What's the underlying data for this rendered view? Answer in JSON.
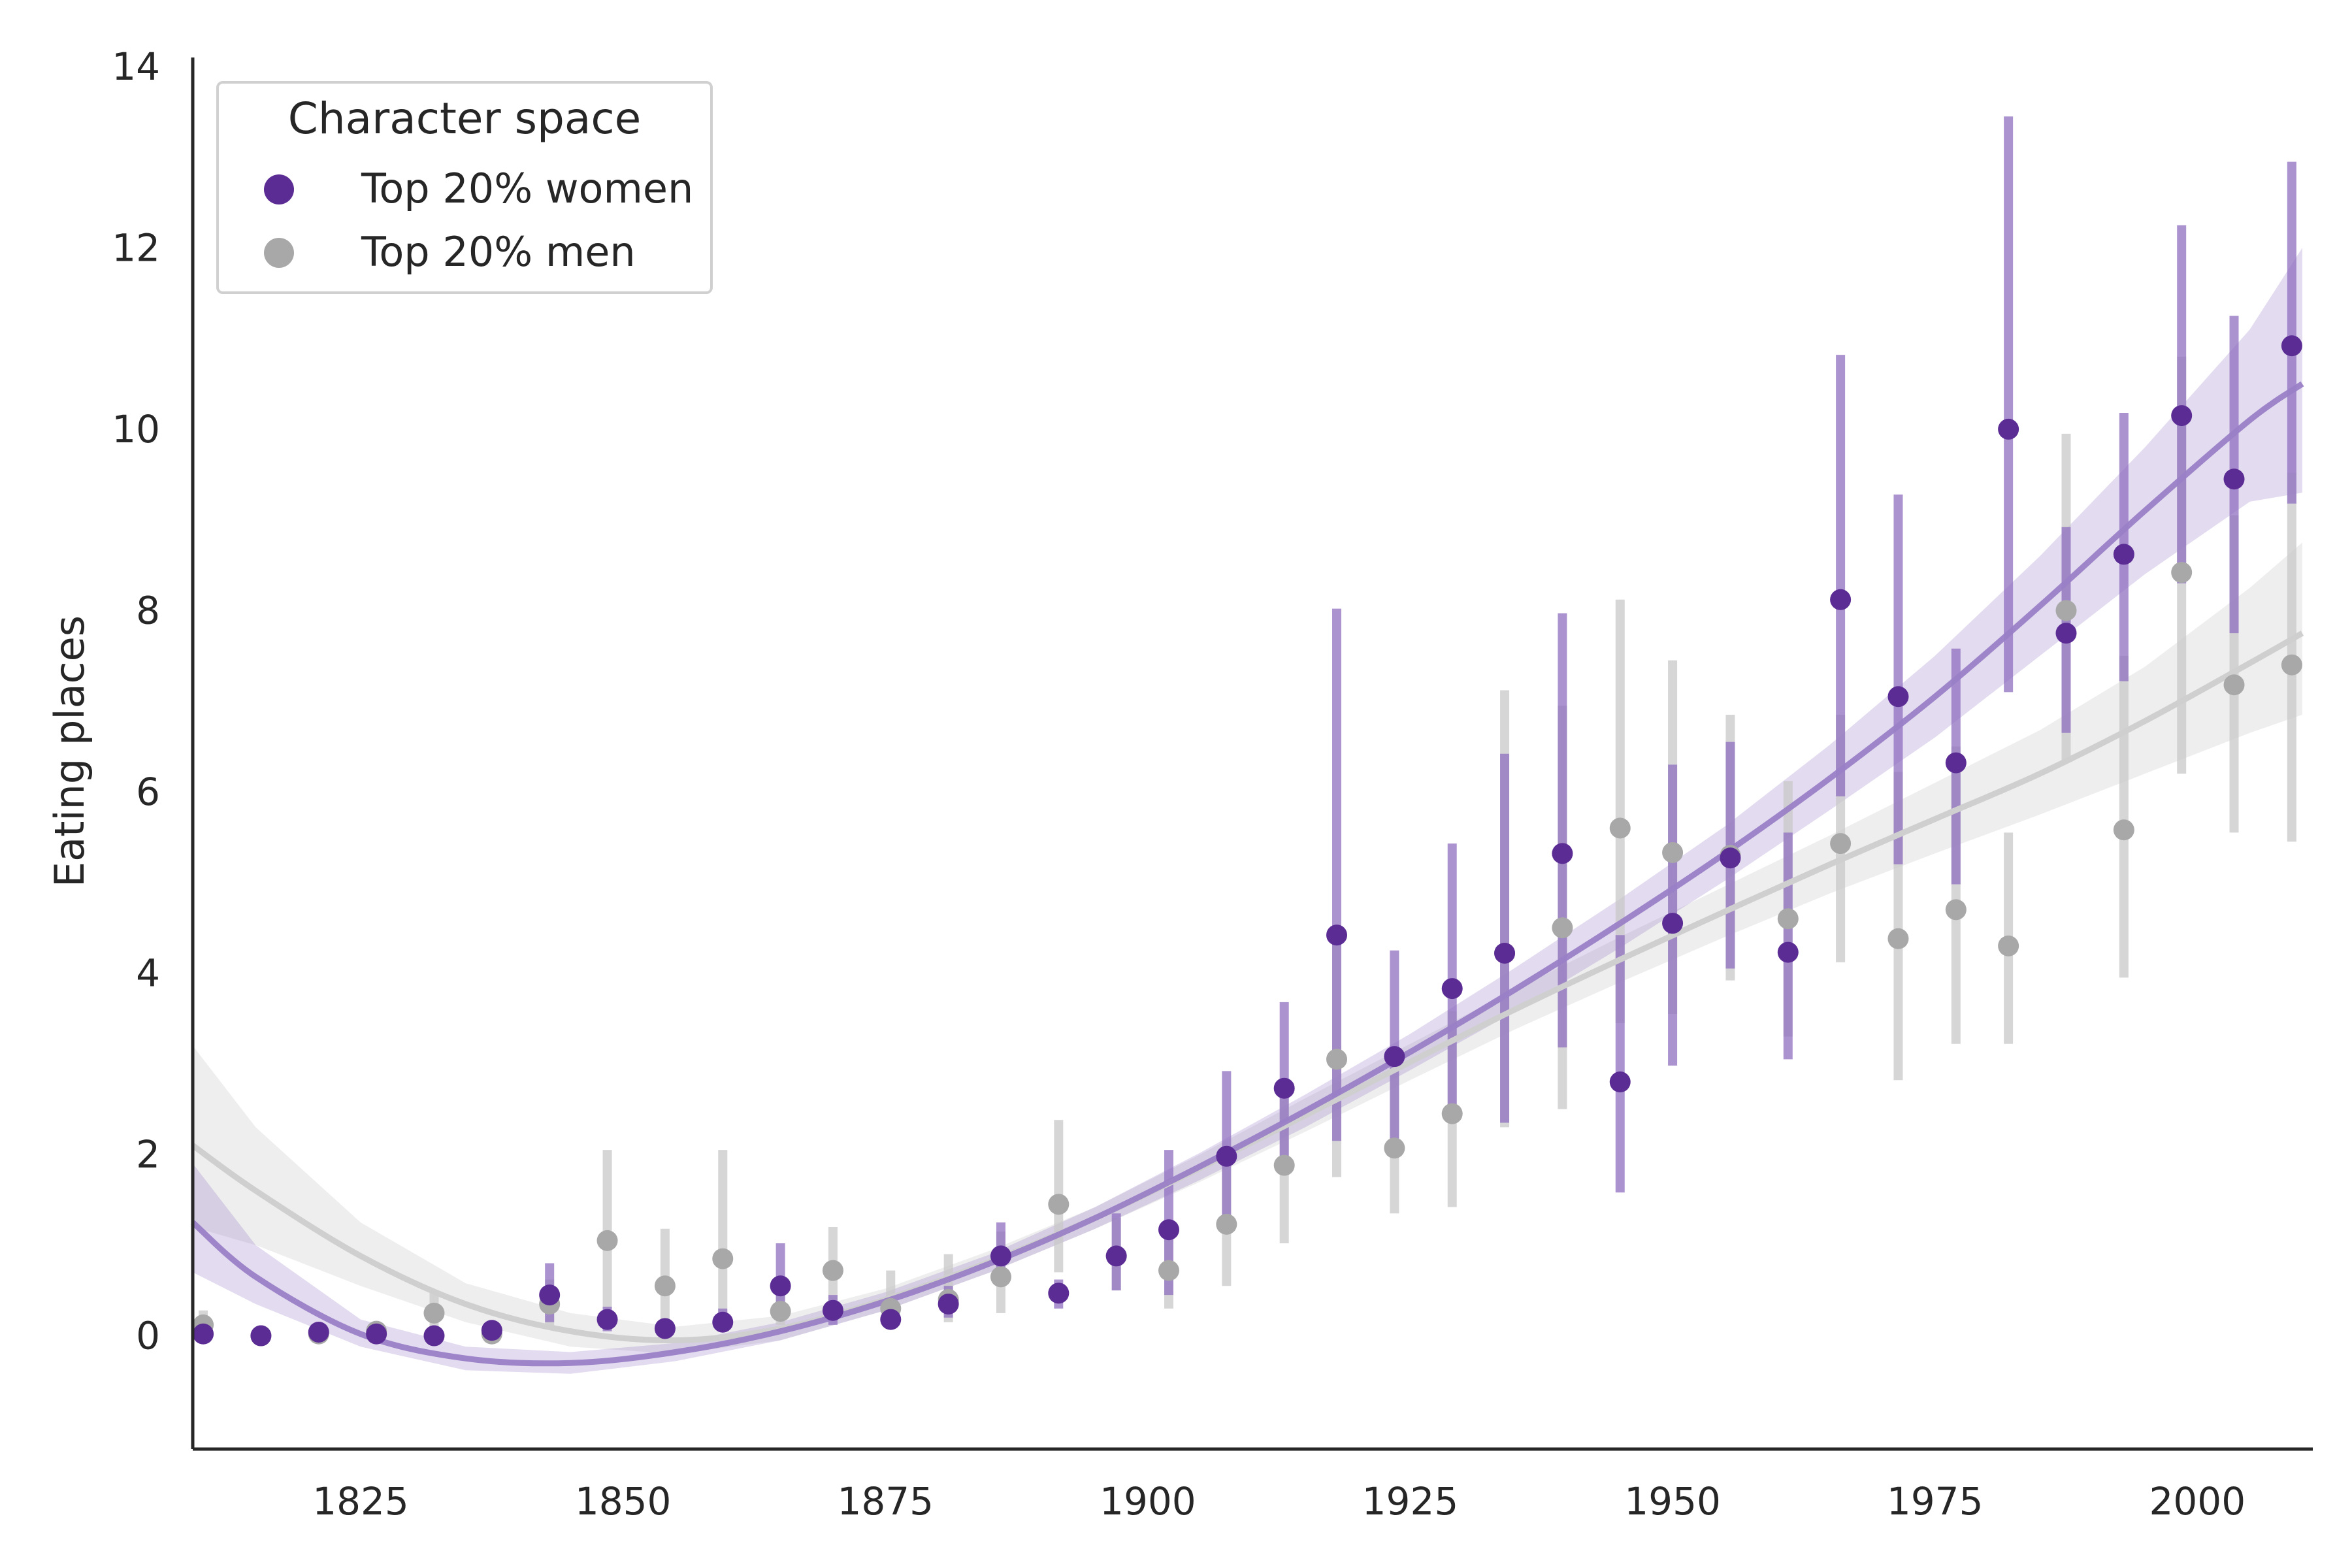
{
  "chart_data": {
    "type": "scatter",
    "title": "",
    "xlabel": "",
    "ylabel": "Eating places",
    "xlim": [
      1809,
      2011
    ],
    "ylim": [
      -1.25,
      14.1
    ],
    "xticks": [
      1825,
      1850,
      1875,
      1900,
      1925,
      1950,
      1975,
      2000
    ],
    "yticks": [
      0,
      2,
      4,
      6,
      8,
      10,
      12,
      14
    ],
    "grid": false,
    "legend": {
      "title": "Character space",
      "placement": "top-left",
      "entries": [
        "Top 20% women",
        "Top 20% men"
      ]
    },
    "series": [
      {
        "name": "Top 20% women",
        "color": "#5b2c94",
        "points": [
          {
            "x": 1810,
            "y": 0.02,
            "lo": 0.0,
            "hi": 0.1
          },
          {
            "x": 1815.5,
            "y": 0.0,
            "lo": 0.0,
            "hi": 0.0
          },
          {
            "x": 1821,
            "y": 0.04,
            "lo": 0.0,
            "hi": 0.1
          },
          {
            "x": 1826.5,
            "y": 0.02,
            "lo": 0.0,
            "hi": 0.08
          },
          {
            "x": 1832,
            "y": 0.0,
            "lo": 0.0,
            "hi": 0.02
          },
          {
            "x": 1837.5,
            "y": 0.06,
            "lo": 0.0,
            "hi": 0.15
          },
          {
            "x": 1843,
            "y": 0.45,
            "lo": 0.15,
            "hi": 0.8
          },
          {
            "x": 1848.5,
            "y": 0.18,
            "lo": 0.05,
            "hi": 0.32
          },
          {
            "x": 1854,
            "y": 0.08,
            "lo": 0.02,
            "hi": 0.16
          },
          {
            "x": 1859.5,
            "y": 0.15,
            "lo": 0.05,
            "hi": 0.3
          },
          {
            "x": 1865,
            "y": 0.55,
            "lo": 0.2,
            "hi": 1.02
          },
          {
            "x": 1870,
            "y": 0.28,
            "lo": 0.12,
            "hi": 0.45
          },
          {
            "x": 1875.5,
            "y": 0.18,
            "lo": 0.08,
            "hi": 0.3
          },
          {
            "x": 1881,
            "y": 0.35,
            "lo": 0.2,
            "hi": 0.55
          },
          {
            "x": 1886,
            "y": 0.88,
            "lo": 0.55,
            "hi": 1.25
          },
          {
            "x": 1891.5,
            "y": 0.47,
            "lo": 0.3,
            "hi": 0.62
          },
          {
            "x": 1897,
            "y": 0.88,
            "lo": 0.5,
            "hi": 1.35
          },
          {
            "x": 1902,
            "y": 1.17,
            "lo": 0.45,
            "hi": 2.05
          },
          {
            "x": 1907.5,
            "y": 1.98,
            "lo": 1.2,
            "hi": 2.92
          },
          {
            "x": 1913,
            "y": 2.73,
            "lo": 1.9,
            "hi": 3.68
          },
          {
            "x": 1918,
            "y": 4.42,
            "lo": 2.15,
            "hi": 8.02
          },
          {
            "x": 1923.5,
            "y": 3.08,
            "lo": 2.1,
            "hi": 4.25
          },
          {
            "x": 1929,
            "y": 3.83,
            "lo": 2.5,
            "hi": 5.43
          },
          {
            "x": 1934,
            "y": 4.22,
            "lo": 2.35,
            "hi": 6.42
          },
          {
            "x": 1939.5,
            "y": 5.32,
            "lo": 3.18,
            "hi": 7.97
          },
          {
            "x": 1945,
            "y": 2.8,
            "lo": 1.58,
            "hi": 4.42
          },
          {
            "x": 1950,
            "y": 4.55,
            "lo": 2.98,
            "hi": 6.3
          },
          {
            "x": 1955.5,
            "y": 5.27,
            "lo": 4.05,
            "hi": 6.55
          },
          {
            "x": 1961,
            "y": 4.23,
            "lo": 3.05,
            "hi": 5.55
          },
          {
            "x": 1966,
            "y": 8.12,
            "lo": 5.95,
            "hi": 10.82
          },
          {
            "x": 1971.5,
            "y": 7.05,
            "lo": 5.2,
            "hi": 9.28
          },
          {
            "x": 1977,
            "y": 6.32,
            "lo": 4.98,
            "hi": 7.58
          },
          {
            "x": 1982,
            "y": 10.0,
            "lo": 7.1,
            "hi": 13.45
          },
          {
            "x": 1987.5,
            "y": 7.75,
            "lo": 6.65,
            "hi": 8.92
          },
          {
            "x": 1993,
            "y": 8.62,
            "lo": 7.22,
            "hi": 10.18
          },
          {
            "x": 1998.5,
            "y": 10.15,
            "lo": 8.3,
            "hi": 12.25
          },
          {
            "x": 2003.5,
            "y": 9.45,
            "lo": 7.75,
            "hi": 11.25
          },
          {
            "x": 2009,
            "y": 10.92,
            "lo": 9.18,
            "hi": 12.95
          }
        ],
        "fit": [
          {
            "x": 1809,
            "y": 1.25,
            "lo": 0.7,
            "hi": 1.9
          },
          {
            "x": 1815,
            "y": 0.65,
            "lo": 0.35,
            "hi": 1.0
          },
          {
            "x": 1825,
            "y": 0.02,
            "lo": -0.12,
            "hi": 0.18
          },
          {
            "x": 1835,
            "y": -0.25,
            "lo": -0.38,
            "hi": -0.12
          },
          {
            "x": 1845,
            "y": -0.3,
            "lo": -0.42,
            "hi": -0.18
          },
          {
            "x": 1855,
            "y": -0.18,
            "lo": -0.28,
            "hi": -0.08
          },
          {
            "x": 1865,
            "y": 0.05,
            "lo": -0.05,
            "hi": 0.15
          },
          {
            "x": 1875,
            "y": 0.38,
            "lo": 0.28,
            "hi": 0.48
          },
          {
            "x": 1885,
            "y": 0.8,
            "lo": 0.7,
            "hi": 0.9
          },
          {
            "x": 1895,
            "y": 1.3,
            "lo": 1.18,
            "hi": 1.42
          },
          {
            "x": 1905,
            "y": 1.87,
            "lo": 1.72,
            "hi": 2.02
          },
          {
            "x": 1915,
            "y": 2.48,
            "lo": 2.3,
            "hi": 2.66
          },
          {
            "x": 1925,
            "y": 3.13,
            "lo": 2.93,
            "hi": 3.33
          },
          {
            "x": 1935,
            "y": 3.82,
            "lo": 3.58,
            "hi": 4.06
          },
          {
            "x": 1945,
            "y": 4.55,
            "lo": 4.28,
            "hi": 4.82
          },
          {
            "x": 1955,
            "y": 5.32,
            "lo": 5.02,
            "hi": 5.62
          },
          {
            "x": 1965,
            "y": 6.15,
            "lo": 5.8,
            "hi": 6.52
          },
          {
            "x": 1975,
            "y": 7.05,
            "lo": 6.6,
            "hi": 7.5
          },
          {
            "x": 1985,
            "y": 8.05,
            "lo": 7.5,
            "hi": 8.6
          },
          {
            "x": 1995,
            "y": 9.1,
            "lo": 8.4,
            "hi": 9.8
          },
          {
            "x": 2005,
            "y": 10.1,
            "lo": 9.2,
            "hi": 11.1
          },
          {
            "x": 2010,
            "y": 10.5,
            "lo": 9.3,
            "hi": 12.0
          }
        ]
      },
      {
        "name": "Top 20% men",
        "color": "#a8a8a8",
        "points": [
          {
            "x": 1810,
            "y": 0.12,
            "lo": 0.0,
            "hi": 0.28
          },
          {
            "x": 1815.5,
            "y": 0.0,
            "lo": 0.0,
            "hi": 0.0
          },
          {
            "x": 1821,
            "y": 0.02,
            "lo": 0.0,
            "hi": 0.08
          },
          {
            "x": 1826.5,
            "y": 0.05,
            "lo": 0.0,
            "hi": 0.15
          },
          {
            "x": 1832,
            "y": 0.25,
            "lo": 0.05,
            "hi": 0.5
          },
          {
            "x": 1837.5,
            "y": 0.02,
            "lo": 0.0,
            "hi": 0.08
          },
          {
            "x": 1843,
            "y": 0.35,
            "lo": 0.1,
            "hi": 0.62
          },
          {
            "x": 1848.5,
            "y": 1.05,
            "lo": 0.3,
            "hi": 2.05
          },
          {
            "x": 1854,
            "y": 0.55,
            "lo": 0.15,
            "hi": 1.18
          },
          {
            "x": 1859.5,
            "y": 0.85,
            "lo": 0.18,
            "hi": 2.05
          },
          {
            "x": 1865,
            "y": 0.27,
            "lo": 0.12,
            "hi": 0.45
          },
          {
            "x": 1870,
            "y": 0.72,
            "lo": 0.3,
            "hi": 1.2
          },
          {
            "x": 1875.5,
            "y": 0.3,
            "lo": 0.1,
            "hi": 0.72
          },
          {
            "x": 1881,
            "y": 0.4,
            "lo": 0.15,
            "hi": 0.9
          },
          {
            "x": 1886,
            "y": 0.65,
            "lo": 0.25,
            "hi": 1.15
          },
          {
            "x": 1891.5,
            "y": 1.45,
            "lo": 0.7,
            "hi": 2.38
          },
          {
            "x": 1897,
            "y": 0.88,
            "lo": 0.5,
            "hi": 1.3
          },
          {
            "x": 1902,
            "y": 0.72,
            "lo": 0.3,
            "hi": 1.25
          },
          {
            "x": 1907.5,
            "y": 1.23,
            "lo": 0.55,
            "hi": 2.05
          },
          {
            "x": 1913,
            "y": 1.88,
            "lo": 1.02,
            "hi": 2.82
          },
          {
            "x": 1918,
            "y": 3.05,
            "lo": 1.75,
            "hi": 4.5
          },
          {
            "x": 1923.5,
            "y": 2.07,
            "lo": 1.35,
            "hi": 2.92
          },
          {
            "x": 1929,
            "y": 2.45,
            "lo": 1.42,
            "hi": 3.58
          },
          {
            "x": 1934,
            "y": 4.22,
            "lo": 2.3,
            "hi": 7.12
          },
          {
            "x": 1939.5,
            "y": 4.5,
            "lo": 2.5,
            "hi": 6.95
          },
          {
            "x": 1945,
            "y": 5.6,
            "lo": 3.45,
            "hi": 8.12
          },
          {
            "x": 1950,
            "y": 5.33,
            "lo": 3.55,
            "hi": 7.45
          },
          {
            "x": 1955.5,
            "y": 5.3,
            "lo": 3.92,
            "hi": 6.85
          },
          {
            "x": 1961,
            "y": 4.6,
            "lo": 3.3,
            "hi": 6.12
          },
          {
            "x": 1966,
            "y": 5.43,
            "lo": 4.12,
            "hi": 6.85
          },
          {
            "x": 1971.5,
            "y": 4.38,
            "lo": 2.82,
            "hi": 6.22
          },
          {
            "x": 1977,
            "y": 4.7,
            "lo": 3.22,
            "hi": 6.5
          },
          {
            "x": 1982,
            "y": 4.3,
            "lo": 3.22,
            "hi": 5.55
          },
          {
            "x": 1987.5,
            "y": 8.0,
            "lo": 6.35,
            "hi": 9.95
          },
          {
            "x": 1993,
            "y": 5.58,
            "lo": 3.95,
            "hi": 7.5
          },
          {
            "x": 1998.5,
            "y": 8.42,
            "lo": 6.2,
            "hi": 10.8
          },
          {
            "x": 2003.5,
            "y": 7.18,
            "lo": 5.55,
            "hi": 9.05
          },
          {
            "x": 2009,
            "y": 7.4,
            "lo": 5.45,
            "hi": 9.52
          }
        ],
        "fit": [
          {
            "x": 1809,
            "y": 2.1,
            "lo": 1.2,
            "hi": 3.2
          },
          {
            "x": 1815,
            "y": 1.6,
            "lo": 1.0,
            "hi": 2.3
          },
          {
            "x": 1825,
            "y": 0.88,
            "lo": 0.55,
            "hi": 1.25
          },
          {
            "x": 1835,
            "y": 0.35,
            "lo": 0.15,
            "hi": 0.58
          },
          {
            "x": 1845,
            "y": 0.05,
            "lo": -0.12,
            "hi": 0.25
          },
          {
            "x": 1855,
            "y": -0.05,
            "lo": -0.2,
            "hi": 0.1
          },
          {
            "x": 1865,
            "y": 0.08,
            "lo": -0.05,
            "hi": 0.22
          },
          {
            "x": 1875,
            "y": 0.4,
            "lo": 0.28,
            "hi": 0.52
          },
          {
            "x": 1885,
            "y": 0.82,
            "lo": 0.7,
            "hi": 0.94
          },
          {
            "x": 1895,
            "y": 1.3,
            "lo": 1.18,
            "hi": 1.42
          },
          {
            "x": 1905,
            "y": 1.85,
            "lo": 1.7,
            "hi": 2.0
          },
          {
            "x": 1915,
            "y": 2.43,
            "lo": 2.25,
            "hi": 2.62
          },
          {
            "x": 1925,
            "y": 3.02,
            "lo": 2.82,
            "hi": 3.22
          },
          {
            "x": 1935,
            "y": 3.6,
            "lo": 3.38,
            "hi": 3.82
          },
          {
            "x": 1945,
            "y": 4.15,
            "lo": 3.9,
            "hi": 4.4
          },
          {
            "x": 1955,
            "y": 4.68,
            "lo": 4.4,
            "hi": 4.96
          },
          {
            "x": 1965,
            "y": 5.2,
            "lo": 4.88,
            "hi": 5.52
          },
          {
            "x": 1975,
            "y": 5.7,
            "lo": 5.32,
            "hi": 6.1
          },
          {
            "x": 1985,
            "y": 6.2,
            "lo": 5.75,
            "hi": 6.68
          },
          {
            "x": 1995,
            "y": 6.78,
            "lo": 6.2,
            "hi": 7.38
          },
          {
            "x": 2005,
            "y": 7.42,
            "lo": 6.65,
            "hi": 8.25
          },
          {
            "x": 2010,
            "y": 7.75,
            "lo": 6.85,
            "hi": 8.75
          }
        ]
      }
    ]
  }
}
